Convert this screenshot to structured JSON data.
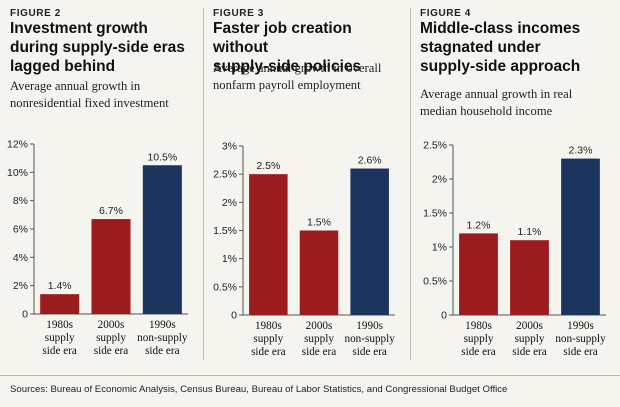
{
  "chart_data": [
    {
      "type": "bar",
      "figure_label": "FIGURE 2",
      "title": [
        "Investment growth",
        "during supply-side eras",
        "lagged behind"
      ],
      "subtitle": [
        "Average annual growth in",
        "nonresidential fixed investment"
      ],
      "categories": [
        [
          "1980s",
          "supply",
          "side era"
        ],
        [
          "2000s",
          "supply",
          "side era"
        ],
        [
          "1990s",
          "non-supply",
          "side era"
        ]
      ],
      "values": [
        1.4,
        6.7,
        10.5
      ],
      "value_labels": [
        "1.4%",
        "6.7%",
        "10.5%"
      ],
      "ylim": [
        0,
        12
      ],
      "yticks": [
        0,
        2,
        4,
        6,
        8,
        10,
        12
      ],
      "ytick_labels": [
        "0",
        "2%",
        "4%",
        "6%",
        "8%",
        "10%",
        "12%"
      ],
      "grid": false
    },
    {
      "type": "bar",
      "figure_label": "FIGURE 3",
      "title": [
        "Faster job creation without",
        "supply-side policies"
      ],
      "subtitle": [
        "Average annual growth in overall",
        "nonfarm payroll employment"
      ],
      "categories": [
        [
          "1980s",
          "supply",
          "side era"
        ],
        [
          "2000s",
          "supply",
          "side era"
        ],
        [
          "1990s",
          "non-supply",
          "side era"
        ]
      ],
      "values": [
        2.5,
        1.5,
        2.6
      ],
      "value_labels": [
        "2.5%",
        "1.5%",
        "2.6%"
      ],
      "ylim": [
        0,
        3
      ],
      "yticks": [
        0,
        0.5,
        1,
        1.5,
        2,
        2.5,
        3
      ],
      "ytick_labels": [
        "0",
        "0.5%",
        "1%",
        "1.5%",
        "2%",
        "2.5%",
        "3%"
      ],
      "grid": false
    },
    {
      "type": "bar",
      "figure_label": "FIGURE 4",
      "title": [
        "Middle-class incomes",
        "stagnated under",
        "supply-side approach"
      ],
      "subtitle": [
        "Average annual growth in real",
        "median household income"
      ],
      "categories": [
        [
          "1980s",
          "supply",
          "side era"
        ],
        [
          "2000s",
          "supply",
          "side era"
        ],
        [
          "1990s",
          "non-supply",
          "side era"
        ]
      ],
      "values": [
        1.2,
        1.1,
        2.3
      ],
      "value_labels": [
        "1.2%",
        "1.1%",
        "2.3%"
      ],
      "ylim": [
        0,
        2.5
      ],
      "yticks": [
        0,
        0.5,
        1,
        1.5,
        2,
        2.5
      ],
      "ytick_labels": [
        "0",
        "0.5%",
        "1%",
        "1.5%",
        "2%",
        "2.5%"
      ],
      "grid": false
    }
  ],
  "colors": {
    "supply_side_bar": "#9b1b1f",
    "non_supply_side_bar": "#1c355e",
    "axis": "#555555",
    "background": "#f5f4ef"
  },
  "footnote": "Sources: Bureau of Economic Analysis, Census Bureau, Bureau of Labor Statistics, and Congressional Budget Office"
}
